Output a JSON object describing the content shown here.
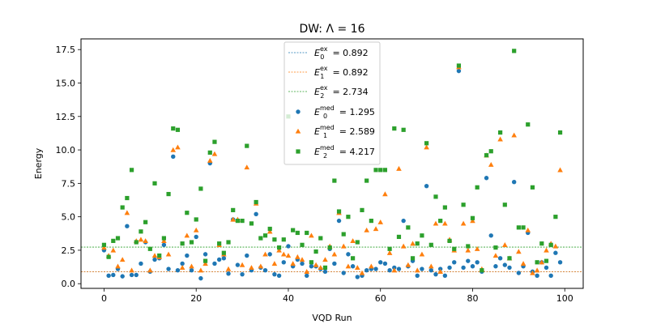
{
  "chart_data": {
    "type": "scatter",
    "title": "DW: Λ = 16",
    "xlabel": "VQD Run",
    "ylabel": "Energy",
    "xlim": [
      -5,
      104
    ],
    "ylim": [
      -0.35,
      18.3
    ],
    "xticks": [
      0,
      20,
      40,
      60,
      80,
      100
    ],
    "yticks": [
      0.0,
      2.5,
      5.0,
      7.5,
      10.0,
      12.5,
      15.0,
      17.5
    ],
    "ytick_labels": [
      "0.0",
      "2.5",
      "5.0",
      "7.5",
      "10.0",
      "12.5",
      "15.0",
      "17.5"
    ],
    "legend_position": "top-center",
    "reference_lines": [
      {
        "name_base": "E",
        "sub": "0",
        "sup": "ex",
        "value_text": " = 0.892",
        "y": 0.892,
        "color": "#1f77b4"
      },
      {
        "name_base": "E",
        "sub": "1",
        "sup": "ex",
        "value_text": " = 0.892",
        "y": 0.892,
        "color": "#ff7f0e"
      },
      {
        "name_base": "E",
        "sub": "2",
        "sup": "ex",
        "value_text": " = 2.734",
        "y": 2.734,
        "color": "#2ca02c"
      }
    ],
    "series": [
      {
        "name_base": "E",
        "sub": "0",
        "sup": "med",
        "value_text": " = 1.295",
        "color": "#1f77b4",
        "marker": "circle",
        "x": [
          0,
          1,
          2,
          3,
          4,
          5,
          6,
          7,
          8,
          9,
          10,
          11,
          12,
          13,
          14,
          15,
          16,
          17,
          18,
          19,
          20,
          21,
          22,
          23,
          24,
          25,
          26,
          27,
          28,
          29,
          30,
          31,
          32,
          33,
          34,
          35,
          36,
          37,
          38,
          39,
          40,
          41,
          42,
          43,
          44,
          45,
          46,
          47,
          48,
          49,
          50,
          51,
          52,
          53,
          54,
          55,
          56,
          57,
          58,
          59,
          60,
          61,
          62,
          63,
          64,
          65,
          66,
          67,
          68,
          69,
          70,
          71,
          72,
          73,
          74,
          75,
          76,
          77,
          78,
          79,
          80,
          81,
          82,
          83,
          84,
          85,
          86,
          87,
          88,
          89,
          90,
          91,
          92,
          93,
          94,
          95,
          96,
          97,
          98,
          99
        ],
        "y": [
          2.5,
          0.6,
          0.65,
          1.1,
          0.55,
          4.3,
          0.65,
          0.65,
          1.5,
          3.1,
          0.9,
          1.8,
          1.9,
          2.9,
          1.1,
          9.5,
          1.0,
          1.5,
          2.1,
          1.0,
          3.5,
          0.4,
          2.2,
          9.0,
          1.5,
          1.8,
          1.9,
          0.75,
          4.8,
          1.4,
          0.7,
          2.1,
          1.0,
          5.2,
          1.2,
          1.0,
          2.2,
          0.7,
          0.6,
          1.6,
          2.8,
          1.3,
          1.8,
          1.5,
          0.6,
          1.3,
          1.3,
          1.1,
          0.9,
          2.6,
          1.5,
          4.7,
          0.8,
          2.2,
          1.3,
          0.5,
          0.6,
          1.0,
          1.1,
          1.1,
          1.6,
          1.5,
          1.0,
          1.2,
          1.1,
          4.7,
          1.3,
          1.7,
          0.6,
          1.1,
          7.3,
          1.0,
          0.7,
          1.1,
          0.6,
          1.2,
          1.6,
          15.9,
          1.2,
          1.7,
          1.3,
          1.6,
          0.9,
          7.9,
          3.6,
          1.3,
          1.9,
          1.4,
          1.2,
          7.6,
          0.8,
          1.3,
          3.8,
          0.9,
          0.6,
          1.6,
          1.2,
          0.6,
          2.3,
          1.6
        ]
      },
      {
        "name_base": "E",
        "sub": "1",
        "sup": "med",
        "value_text": " = 2.589",
        "color": "#ff7f0e",
        "marker": "triangle",
        "x": [
          0,
          1,
          2,
          3,
          4,
          5,
          6,
          7,
          8,
          9,
          10,
          11,
          12,
          13,
          14,
          15,
          16,
          17,
          18,
          19,
          20,
          21,
          22,
          23,
          24,
          25,
          26,
          27,
          28,
          29,
          30,
          31,
          32,
          33,
          34,
          35,
          36,
          37,
          38,
          39,
          40,
          41,
          42,
          43,
          44,
          45,
          46,
          47,
          48,
          49,
          50,
          51,
          52,
          53,
          54,
          55,
          56,
          57,
          58,
          59,
          60,
          61,
          62,
          63,
          64,
          65,
          66,
          67,
          68,
          69,
          70,
          71,
          72,
          73,
          74,
          75,
          76,
          77,
          78,
          79,
          80,
          81,
          82,
          83,
          84,
          85,
          86,
          87,
          88,
          89,
          90,
          91,
          92,
          93,
          94,
          95,
          96,
          97,
          98,
          99
        ],
        "y": [
          2.7,
          2.1,
          2.5,
          1.3,
          1.8,
          5.3,
          1.0,
          3.2,
          3.3,
          3.2,
          1.0,
          2.1,
          2.0,
          3.2,
          2.2,
          10.0,
          10.2,
          1.2,
          3.6,
          1.3,
          4.0,
          1.0,
          1.5,
          9.2,
          9.7,
          2.9,
          2.2,
          1.1,
          4.8,
          4.8,
          1.4,
          8.7,
          1.2,
          6.0,
          1.3,
          2.2,
          3.9,
          1.5,
          2.5,
          2.2,
          2.1,
          1.5,
          2.0,
          1.8,
          0.9,
          3.6,
          1.4,
          1.2,
          1.8,
          2.8,
          2.2,
          5.3,
          2.8,
          1.3,
          3.2,
          1.2,
          0.8,
          4.0,
          1.3,
          4.1,
          4.6,
          6.7,
          2.3,
          1.0,
          8.6,
          2.8,
          1.4,
          3.0,
          1.0,
          2.2,
          10.2,
          1.3,
          4.5,
          0.9,
          4.5,
          3.3,
          2.5,
          16.2,
          4.5,
          2.5,
          4.7,
          2.6,
          1.1,
          9.6,
          8.9,
          2.1,
          10.8,
          2.9,
          1.9,
          11.1,
          2.4,
          1.5,
          4.0,
          0.8,
          1.0,
          1.6,
          2.5,
          3.0,
          2.8,
          8.5
        ]
      },
      {
        "name_base": "E",
        "sub": "2",
        "sup": "med",
        "value_text": " = 4.217",
        "color": "#2ca02c",
        "marker": "square",
        "x": [
          0,
          1,
          2,
          3,
          4,
          5,
          6,
          7,
          8,
          9,
          10,
          11,
          12,
          13,
          14,
          15,
          16,
          17,
          18,
          19,
          20,
          21,
          22,
          23,
          24,
          25,
          26,
          27,
          28,
          29,
          30,
          31,
          32,
          33,
          34,
          35,
          36,
          37,
          38,
          39,
          40,
          41,
          42,
          43,
          44,
          45,
          46,
          47,
          48,
          49,
          50,
          51,
          52,
          53,
          54,
          55,
          56,
          57,
          58,
          59,
          60,
          61,
          62,
          63,
          64,
          65,
          66,
          67,
          68,
          69,
          70,
          71,
          72,
          73,
          74,
          75,
          76,
          77,
          78,
          79,
          80,
          81,
          82,
          83,
          84,
          85,
          86,
          87,
          88,
          89,
          90,
          91,
          92,
          93,
          94,
          95,
          96,
          97,
          98,
          99
        ],
        "y": [
          2.9,
          2.0,
          3.2,
          3.4,
          5.7,
          6.4,
          8.5,
          3.1,
          3.9,
          4.6,
          2.6,
          7.5,
          2.1,
          3.4,
          6.7,
          11.6,
          11.5,
          3.0,
          5.3,
          3.1,
          4.8,
          7.1,
          1.7,
          9.8,
          10.6,
          3.0,
          2.3,
          3.1,
          5.5,
          4.7,
          4.7,
          10.3,
          4.5,
          6.1,
          3.4,
          3.6,
          4.1,
          3.3,
          2.7,
          3.3,
          12.5,
          4.0,
          3.8,
          2.9,
          3.8,
          1.6,
          2.4,
          3.4,
          1.2,
          2.7,
          7.7,
          5.4,
          3.7,
          5.0,
          1.9,
          3.1,
          5.5,
          7.7,
          4.7,
          8.5,
          8.5,
          8.5,
          2.6,
          11.6,
          3.5,
          11.5,
          4.2,
          1.9,
          3.0,
          3.6,
          10.5,
          2.9,
          6.5,
          4.7,
          5.7,
          3.2,
          2.6,
          16.3,
          5.9,
          2.8,
          4.9,
          7.2,
          1.0,
          9.6,
          9.9,
          2.7,
          11.3,
          5.9,
          1.9,
          17.4,
          4.2,
          4.2,
          11.9,
          7.2,
          1.6,
          3.0,
          1.7,
          2.9,
          5.0,
          11.3
        ]
      }
    ]
  }
}
